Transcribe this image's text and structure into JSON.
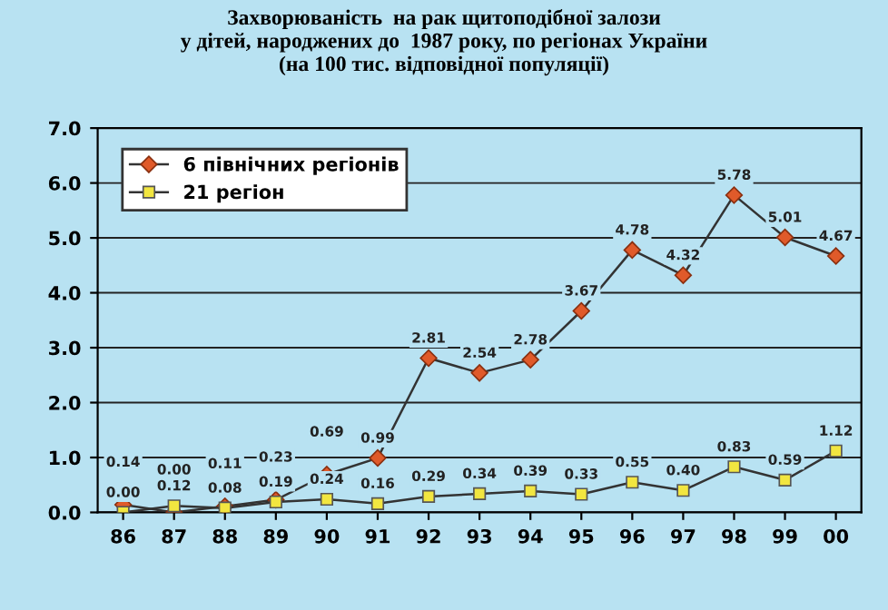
{
  "chart_data": {
    "type": "line",
    "title": "Захворюваність  на рак щитоподібної залози\nу дітей, народжених до  1987 року, по регіонах України\n(на 100 тис. відповідної популяції)",
    "categories": [
      "86",
      "87",
      "88",
      "89",
      "90",
      "91",
      "92",
      "93",
      "94",
      "95",
      "96",
      "97",
      "98",
      "99",
      "00"
    ],
    "series": [
      {
        "name": "6 північних регіонів",
        "color": "#e05a2a",
        "marker": "diamond",
        "values": [
          0.14,
          0.0,
          0.11,
          0.23,
          0.69,
          0.99,
          2.81,
          2.54,
          2.78,
          3.67,
          4.78,
          4.32,
          5.78,
          5.01,
          4.67
        ],
        "value_labels": [
          "0.14",
          "0.00",
          "0.11",
          "0.23",
          "0.69",
          "0.99",
          "2.81",
          "2.54",
          "2.78",
          "3.67",
          "4.78",
          "4.32",
          "5.78",
          "5.01",
          "4.67"
        ]
      },
      {
        "name": "21 регіон",
        "color": "#f2e640",
        "marker": "square",
        "values": [
          0.0,
          0.12,
          0.08,
          0.19,
          0.24,
          0.16,
          0.29,
          0.34,
          0.39,
          0.33,
          0.55,
          0.4,
          0.83,
          0.59,
          1.12
        ],
        "value_labels": [
          "0.00",
          "0.12",
          "0.08",
          "0.19",
          "0.24",
          "0.16",
          "0.29",
          "0.34",
          "0.39",
          "0.33",
          "0.55",
          "0.40",
          "0.83",
          "0.59",
          "1.12"
        ]
      }
    ],
    "ylim": [
      0,
      7
    ],
    "yticks": [
      {
        "value": 0,
        "label": "0.0"
      },
      {
        "value": 1,
        "label": "1.0"
      },
      {
        "value": 2,
        "label": "2.0"
      },
      {
        "value": 3,
        "label": "3.0"
      },
      {
        "value": 4,
        "label": "4.0"
      },
      {
        "value": 5,
        "label": "5.0"
      },
      {
        "value": 6,
        "label": "6.0"
      },
      {
        "value": 7,
        "label": "7.0"
      }
    ],
    "grid": "y",
    "legend": "top left",
    "line_style": "solid"
  }
}
